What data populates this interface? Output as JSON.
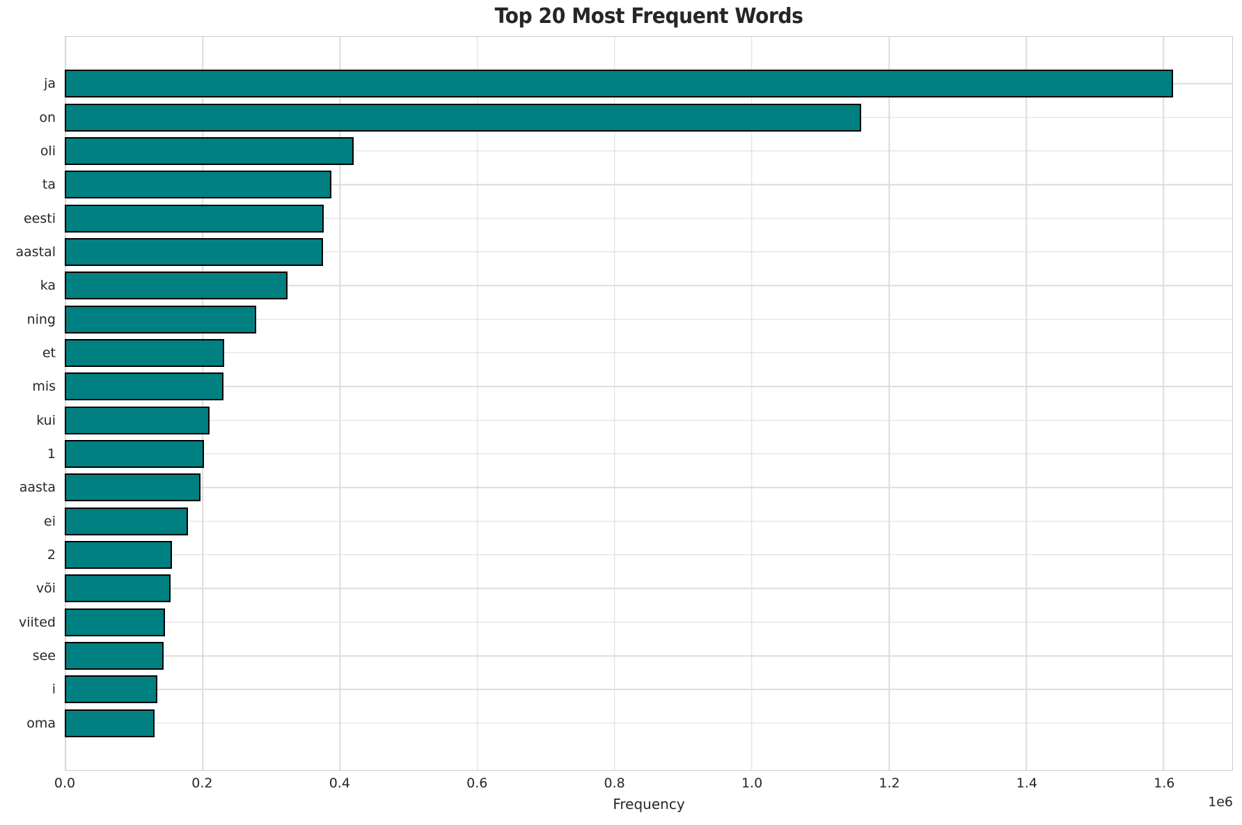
{
  "chart_data": {
    "type": "bar",
    "orientation": "horizontal",
    "title": "Top 20 Most Frequent Words",
    "xlabel": "Frequency",
    "x_offset_label": "1e6",
    "categories": [
      "ja",
      "on",
      "oli",
      "ta",
      "eesti",
      "aastal",
      "ka",
      "ning",
      "et",
      "mis",
      "kui",
      "1",
      "aasta",
      "ei",
      "2",
      "või",
      "viited",
      "see",
      "i",
      "oma"
    ],
    "values": [
      1615000,
      1161000,
      421000,
      389000,
      378000,
      377000,
      325000,
      279000,
      233000,
      232000,
      211000,
      203000,
      198000,
      180000,
      157000,
      155000,
      146000,
      144000,
      135000,
      131000
    ],
    "xticks": [
      0,
      200000,
      400000,
      600000,
      800000,
      1000000,
      1200000,
      1400000,
      1600000
    ],
    "xtick_labels": [
      "0.0",
      "0.2",
      "0.4",
      "0.6",
      "0.8",
      "1.0",
      "1.2",
      "1.4",
      "1.6"
    ],
    "xlim": [
      0,
      1700000
    ],
    "grid": true,
    "legend": false,
    "bar_color": "#008080",
    "bar_edge_color": "#000000",
    "grid_color": "#dcdcdc",
    "spine_color": "#cccccc",
    "text_color": "#262626",
    "background_color": "#ffffff"
  }
}
